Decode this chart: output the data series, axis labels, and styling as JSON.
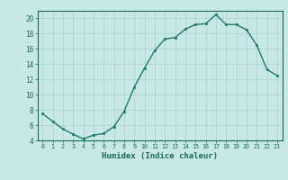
{
  "x": [
    0,
    1,
    2,
    3,
    4,
    5,
    6,
    7,
    8,
    9,
    10,
    11,
    12,
    13,
    14,
    15,
    16,
    17,
    18,
    19,
    20,
    21,
    22,
    23
  ],
  "y": [
    7.5,
    6.5,
    5.5,
    4.8,
    4.2,
    4.7,
    4.9,
    5.8,
    7.8,
    11.0,
    13.5,
    15.8,
    17.3,
    17.5,
    18.6,
    19.2,
    19.3,
    20.5,
    19.2,
    19.2,
    18.5,
    16.5,
    13.3,
    12.5
  ],
  "xlabel": "Humidex (Indice chaleur)",
  "xlim": [
    -0.5,
    23.5
  ],
  "ylim": [
    4,
    21
  ],
  "yticks": [
    4,
    6,
    8,
    10,
    12,
    14,
    16,
    18,
    20
  ],
  "xticks": [
    0,
    1,
    2,
    3,
    4,
    5,
    6,
    7,
    8,
    9,
    10,
    11,
    12,
    13,
    14,
    15,
    16,
    17,
    18,
    19,
    20,
    21,
    22,
    23
  ],
  "line_color": "#1a7a6e",
  "marker_color": "#1a7a6e",
  "bg_color": "#c8e8e8",
  "grid_color": "#b0d4d0",
  "tick_label_color": "#1a6a5a",
  "spine_color": "#1a6a5a"
}
